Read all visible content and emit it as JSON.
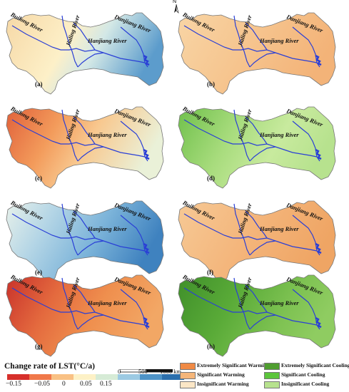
{
  "rivers": {
    "builong": "Builong River",
    "jialing": "Jialing River",
    "hanjiang": "Hanjiang River",
    "danjiang": "Danjiang River"
  },
  "compass": "N",
  "panels": [
    {
      "label": "(a)",
      "legend_type": "Change rate of LST(°C/a)"
    },
    {
      "label": "(b)",
      "legend_type": "significance"
    },
    {
      "label": "(c)",
      "legend_type": "Change rate of LST(°C/a)"
    },
    {
      "label": "(d)",
      "legend_type": "significance"
    },
    {
      "label": "(e)",
      "legend_type": "Change rate of LST(°C/a)"
    },
    {
      "label": "(f)",
      "legend_type": "significance"
    },
    {
      "label": "(g)",
      "legend_type": "Change rate of LST(°C/a)"
    },
    {
      "label": "(h)",
      "legend_type": "significance"
    }
  ],
  "legend_rate": {
    "title": "Change rate of LST(°C/a)",
    "ticks": [
      "−0.15",
      "−0.05",
      "0",
      "0.05",
      "0.15"
    ],
    "colors": [
      "#d7302b",
      "#f0784a",
      "#f9c184",
      "#fdf1c6",
      "#d6ebd6",
      "#9ccae3",
      "#4e93c7",
      "#2b6fad"
    ]
  },
  "scale": {
    "labels": [
      "0",
      "500",
      "1000 km"
    ]
  },
  "legend_sig": [
    {
      "label": "Extremely Significant Warming",
      "color": "#f08a45"
    },
    {
      "label": "Extremely Significant Cooling",
      "color": "#4f9e2f"
    },
    {
      "label": "Significant Warming",
      "color": "#f5b67a"
    },
    {
      "label": "Significant Cooling",
      "color": "#5cc53b"
    },
    {
      "label": "Insignificant Warming",
      "color": "#fbe6c6"
    },
    {
      "label": "Insignificant Cooling",
      "color": "#b7e28e"
    }
  ],
  "river_color": "#2a3fd6"
}
